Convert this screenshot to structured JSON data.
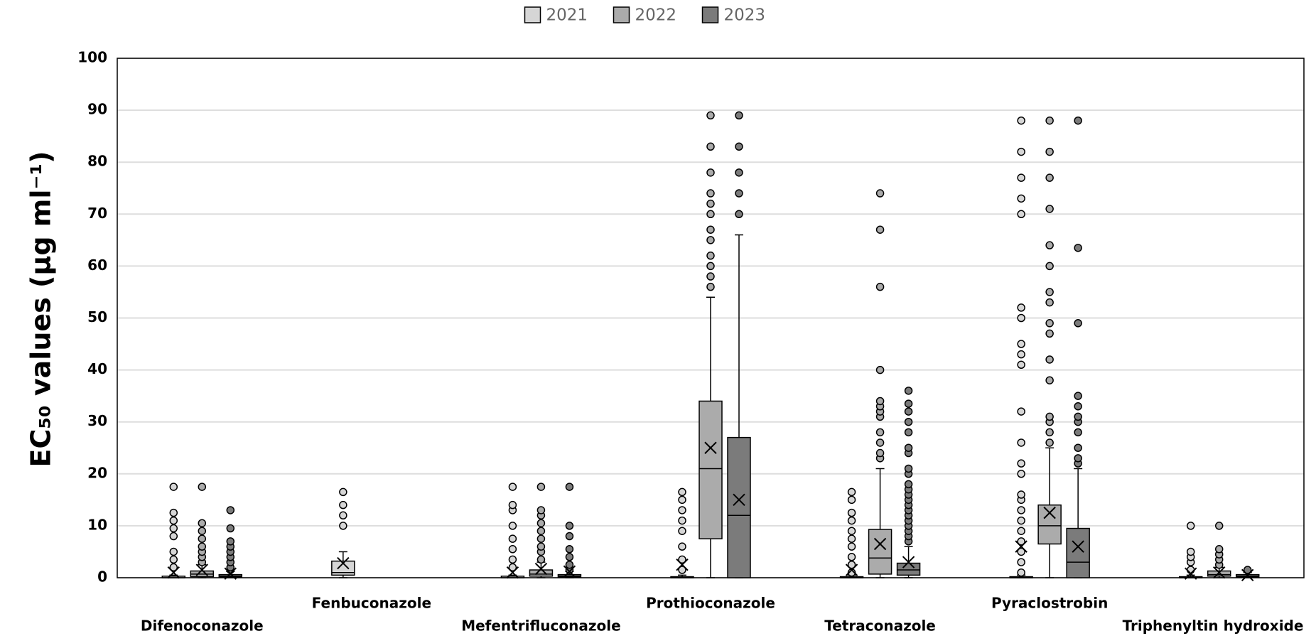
{
  "chart_data": {
    "type": "box",
    "y_label": "EC₅₀ values (µg ml⁻¹)",
    "categories": [
      "Difenoconazole",
      "Fenbuconazole",
      "Mefentrifluconazole",
      "Prothioconazole",
      "Tetraconazole",
      "Pyraclostrobin",
      "Triphenyltin hydroxide"
    ],
    "ylim": [
      0,
      100
    ],
    "yticks": [
      0,
      10,
      20,
      30,
      40,
      50,
      60,
      70,
      80,
      90,
      100
    ],
    "grid": true,
    "legend": "top",
    "series": [
      {
        "name": "2021",
        "color": "#d6d6d6",
        "boxes": [
          {
            "min": 0,
            "q1": 0,
            "median": 0,
            "q3": 0.3,
            "max": 0.5,
            "mean": 1,
            "outliers": [
              2,
              3.5,
              5,
              8,
              9.5,
              11,
              12.5,
              17.5
            ]
          },
          {
            "min": 0,
            "q1": 0.5,
            "median": 1,
            "q3": 3.2,
            "max": 5,
            "mean": 2.8,
            "outliers": [
              10,
              12,
              14,
              16.5
            ]
          },
          {
            "min": 0,
            "q1": 0,
            "median": 0,
            "q3": 0.3,
            "max": 0.5,
            "mean": 1,
            "outliers": [
              2,
              3.5,
              5.5,
              7.5,
              10,
              13,
              14,
              17.5
            ]
          },
          {
            "min": 0,
            "q1": 0,
            "median": 0,
            "q3": 0.2,
            "max": 0.5,
            "mean": 2.5,
            "outliers": [
              1.5,
              3.5,
              6,
              9,
              11,
              13,
              15,
              16.5
            ]
          },
          {
            "min": 0,
            "q1": 0,
            "median": 0,
            "q3": 0.2,
            "max": 0.5,
            "mean": 1.5,
            "outliers": [
              1,
              2.5,
              4,
              6,
              7.5,
              9,
              11,
              12.5,
              15,
              16.5
            ]
          },
          {
            "min": 0,
            "q1": 0,
            "median": 0,
            "q3": 0.2,
            "max": 0.5,
            "mean": 6,
            "outliers": [
              1,
              3,
              5,
              7,
              9,
              11,
              13,
              15,
              16,
              20,
              22,
              26,
              32,
              41,
              43,
              45,
              50,
              52,
              70,
              73,
              77,
              82,
              88
            ]
          },
          {
            "min": 0,
            "q1": 0,
            "median": 0,
            "q3": 0.2,
            "max": 0.5,
            "mean": 0.8,
            "outliers": [
              1.5,
              3,
              4,
              5,
              10
            ]
          }
        ]
      },
      {
        "name": "2022",
        "color": "#ababab",
        "boxes": [
          {
            "min": 0,
            "q1": 0.2,
            "median": 0.7,
            "q3": 1.3,
            "max": 2.5,
            "mean": 1.5,
            "outliers": [
              3,
              4,
              5,
              6,
              7.5,
              9,
              10.5,
              17.5
            ]
          },
          null,
          {
            "min": 0,
            "q1": 0.3,
            "median": 0.7,
            "q3": 1.5,
            "max": 3,
            "mean": 1.7,
            "outliers": [
              3.5,
              5,
              6,
              7.5,
              9,
              10.5,
              12,
              13,
              17.5
            ]
          },
          {
            "min": 0,
            "q1": 7.5,
            "median": 21,
            "q3": 34,
            "max": 54,
            "mean": 25,
            "outliers": [
              56,
              58,
              60,
              62,
              65,
              67,
              70,
              72,
              74,
              78,
              83,
              89
            ]
          },
          {
            "min": 0,
            "q1": 0.7,
            "median": 3.8,
            "q3": 9.3,
            "max": 21,
            "mean": 6.5,
            "outliers": [
              23,
              24,
              26,
              28,
              31,
              32,
              33,
              34,
              40,
              56,
              67,
              74
            ]
          },
          {
            "min": 0,
            "q1": 6.5,
            "median": 10,
            "q3": 14,
            "max": 25,
            "mean": 12.5,
            "outliers": [
              26,
              28,
              30,
              31,
              38,
              42,
              47,
              49,
              53,
              55,
              60,
              64,
              71,
              77,
              82,
              88
            ]
          },
          {
            "min": 0,
            "q1": 0.3,
            "median": 0.6,
            "q3": 1.3,
            "max": 2,
            "mean": 1,
            "outliers": [
              2.5,
              3.5,
              4.5,
              5.5,
              10
            ]
          }
        ]
      },
      {
        "name": "2023",
        "color": "#7b7b7b",
        "boxes": [
          {
            "min": 0,
            "q1": 0.1,
            "median": 0.3,
            "q3": 0.6,
            "max": 1.2,
            "mean": 0.8,
            "outliers": [
              1.5,
              2,
              3,
              4,
              5,
              6,
              7,
              9.5,
              13
            ]
          },
          null,
          {
            "min": 0,
            "q1": 0.1,
            "median": 0.3,
            "q3": 0.6,
            "max": 1.2,
            "mean": 1.2,
            "outliers": [
              1.5,
              2.5,
              4,
              5.5,
              8,
              10,
              17.5
            ]
          },
          {
            "min": 0,
            "q1": 0,
            "median": 12,
            "q3": 27,
            "max": 66,
            "mean": 15,
            "outliers": [
              70,
              74,
              78,
              83,
              89
            ]
          },
          {
            "min": 0,
            "q1": 0.5,
            "median": 1.5,
            "q3": 2.8,
            "max": 6,
            "mean": 3,
            "outliers": [
              7,
              8,
              9,
              10,
              11,
              12,
              13,
              14,
              15,
              16,
              17,
              18,
              20,
              21,
              24,
              25,
              28,
              30,
              32,
              33.5,
              36
            ]
          },
          {
            "min": 0,
            "q1": 0,
            "median": 3,
            "q3": 9.5,
            "max": 21,
            "mean": 6,
            "outliers": [
              22,
              23,
              25,
              28,
              30,
              31,
              33,
              35,
              49,
              63.5,
              88
            ]
          },
          {
            "min": 0,
            "q1": 0.1,
            "median": 0.3,
            "q3": 0.6,
            "max": 1,
            "mean": 0.5,
            "outliers": [
              1.5
            ]
          }
        ]
      }
    ]
  }
}
